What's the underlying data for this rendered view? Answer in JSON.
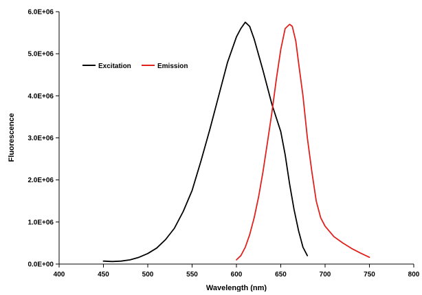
{
  "chart_data": {
    "type": "line",
    "title": "",
    "xlabel": "Wavelength (nm)",
    "ylabel": "Fluorescence",
    "xlim": [
      400,
      800
    ],
    "ylim": [
      0,
      6000000
    ],
    "x_ticks": [
      "400",
      "450",
      "500",
      "550",
      "600",
      "650",
      "700",
      "750",
      "800"
    ],
    "y_ticks": [
      "0.0E+00",
      "1.0E+06",
      "2.0E+06",
      "3.0E+06",
      "4.0E+06",
      "5.0E+06",
      "6.0E+06"
    ],
    "grid": false,
    "legend_position": "top-left",
    "series": [
      {
        "name": "Excitation",
        "color": "#000000",
        "x": [
          450,
          460,
          470,
          480,
          490,
          500,
          510,
          520,
          530,
          540,
          550,
          560,
          570,
          580,
          590,
          600,
          605,
          610,
          615,
          620,
          630,
          640,
          650,
          655,
          660,
          665,
          670,
          675,
          680
        ],
        "y": [
          70000,
          60000,
          70000,
          100000,
          160000,
          250000,
          380000,
          580000,
          850000,
          1250000,
          1750000,
          2450000,
          3200000,
          4000000,
          4800000,
          5400000,
          5600000,
          5750000,
          5650000,
          5350000,
          4600000,
          3800000,
          3150000,
          2600000,
          1900000,
          1300000,
          800000,
          400000,
          200000
        ]
      },
      {
        "name": "Emission",
        "color": "#e0201b",
        "x": [
          600,
          605,
          610,
          615,
          620,
          625,
          630,
          635,
          640,
          645,
          650,
          655,
          660,
          663,
          667,
          670,
          675,
          680,
          685,
          690,
          695,
          700,
          710,
          720,
          730,
          740,
          750
        ],
        "y": [
          100000,
          200000,
          400000,
          700000,
          1100000,
          1600000,
          2200000,
          2900000,
          3600000,
          4400000,
          5100000,
          5600000,
          5700000,
          5650000,
          5300000,
          4800000,
          4000000,
          3000000,
          2200000,
          1500000,
          1100000,
          900000,
          650000,
          500000,
          370000,
          260000,
          160000
        ]
      }
    ]
  }
}
